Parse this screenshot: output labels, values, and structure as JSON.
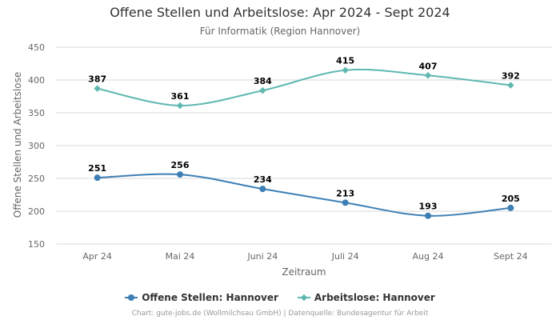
{
  "chart_data": {
    "type": "line",
    "title": "Offene Stellen und Arbeitslose: Apr 2024 - Sept 2024",
    "subtitle": "Für Informatik (Region Hannover)",
    "xlabel": "Zeitraum",
    "ylabel": "Offene Stellen und Arbeitslose",
    "categories": [
      "Apr 24",
      "Mai 24",
      "Juni 24",
      "Juli 24",
      "Aug 24",
      "Sept 24"
    ],
    "ylim": [
      150,
      450
    ],
    "yticks": [
      "150",
      "200",
      "250",
      "300",
      "350",
      "400",
      "450"
    ],
    "grid": true,
    "legend_position": "bottom",
    "series": [
      {
        "name": "Offene Stellen: Hannover",
        "values": [
          251,
          256,
          234,
          213,
          193,
          205
        ],
        "color": "#3d7fb5",
        "marker": "circle"
      },
      {
        "name": "Arbeitslose: Hannover",
        "values": [
          387,
          361,
          384,
          415,
          407,
          392
        ],
        "color": "#5fb8b0",
        "marker": "diamond"
      }
    ],
    "credits": "Chart: gute-jobs.de (Wollmilchsau GmbH) | Datenquelle: Bundesagentur für Arbeit"
  }
}
